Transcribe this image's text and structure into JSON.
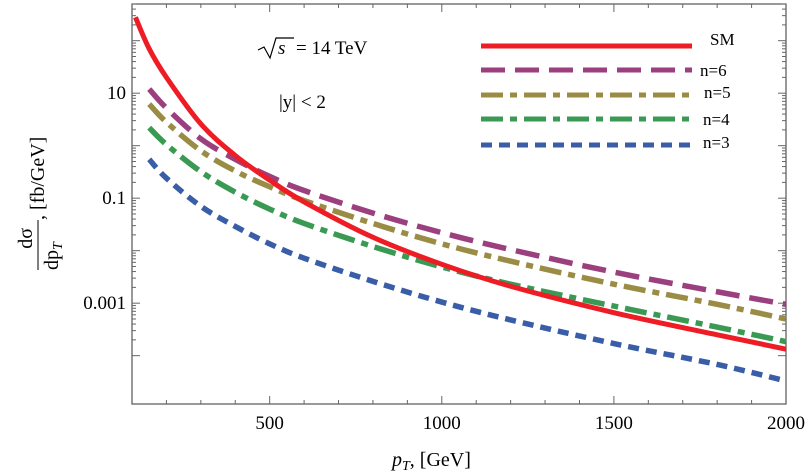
{
  "chart_data": {
    "type": "line",
    "title": "",
    "xlabel": "p_T, [GeV]",
    "xlabel_main": "p",
    "xlabel_sub": "T",
    "xlabel_rest": ", [GeV]",
    "ylabel_num": "dσ",
    "ylabel_den": "dp",
    "ylabel_den_sub": "T",
    "ylabel_unit": ", [fb/GeV]",
    "yscale": "log",
    "xlim": [
      100,
      2000
    ],
    "ylim": [
      1.2e-05,
      500
    ],
    "x_ticks": [
      500,
      1000,
      1500,
      2000
    ],
    "x_tick_labels": [
      "500",
      "1000",
      "1500",
      "2000"
    ],
    "y_ticks": [
      10,
      0.1,
      0.001
    ],
    "y_tick_labels": [
      "10",
      "0.1",
      "0.001"
    ],
    "annotations": {
      "energy_label": "s",
      "energy_value": " = 14 TeV",
      "rapidity": "|y| < 2"
    },
    "legend": {
      "position": "top-right",
      "entries": [
        "SM",
        "n=6",
        "n=5",
        "n=4",
        "n=3"
      ]
    },
    "series": [
      {
        "name": "SM",
        "color": "#ee1c25",
        "style": "solid",
        "x": [
          110,
          150,
          200,
          300,
          400,
          500,
          600,
          800,
          1000,
          1200,
          1500,
          1800,
          2000
        ],
        "y": [
          280,
          70,
          20,
          2.6,
          0.65,
          0.22,
          0.085,
          0.018,
          0.0055,
          0.0021,
          0.00066,
          0.00025,
          0.000133
        ]
      },
      {
        "name": "n=6",
        "color": "#9b3f7e",
        "style": "long-dash",
        "x": [
          150,
          200,
          300,
          400,
          500,
          600,
          800,
          1000,
          1200,
          1500,
          1800,
          2000
        ],
        "y": [
          12,
          5.2,
          1.35,
          0.55,
          0.26,
          0.14,
          0.052,
          0.022,
          0.0105,
          0.0039,
          0.00165,
          0.00095
        ]
      },
      {
        "name": "n=5",
        "color": "#9a8c45",
        "style": "dash-dot",
        "x": [
          150,
          200,
          300,
          400,
          500,
          600,
          800,
          1000,
          1200,
          1500,
          1800,
          2000
        ],
        "y": [
          6.2,
          2.8,
          0.8,
          0.33,
          0.165,
          0.09,
          0.033,
          0.0135,
          0.0063,
          0.0023,
          0.00095,
          0.0005
        ]
      },
      {
        "name": "n=4",
        "color": "#3a9a54",
        "style": "dash-dot",
        "x": [
          150,
          200,
          300,
          400,
          500,
          600,
          800,
          1000,
          1200,
          1500,
          1800,
          2000
        ],
        "y": [
          2.2,
          1.05,
          0.32,
          0.13,
          0.062,
          0.033,
          0.012,
          0.0049,
          0.0023,
          0.00088,
          0.00035,
          0.000185
        ]
      },
      {
        "name": "n=3",
        "color": "#3a5da8",
        "style": "short-dash",
        "x": [
          150,
          200,
          300,
          400,
          500,
          600,
          800,
          1000,
          1200,
          1500,
          1800,
          2000
        ],
        "y": [
          0.55,
          0.24,
          0.07,
          0.029,
          0.0135,
          0.0072,
          0.0026,
          0.00105,
          0.00048,
          0.00017,
          6.8e-05,
          3.3e-05
        ]
      }
    ]
  }
}
